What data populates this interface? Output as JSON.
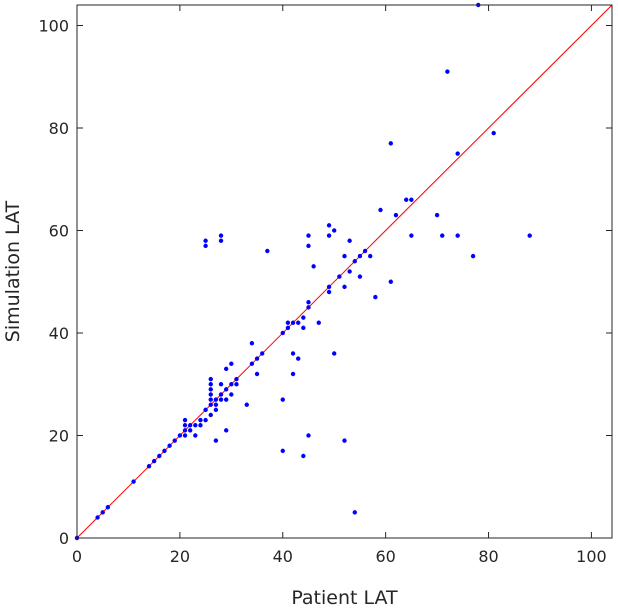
{
  "chart_data": {
    "type": "scatter",
    "title": "",
    "xlabel": "Patient LAT",
    "ylabel": "Simulation LAT",
    "xlim": [
      0,
      104
    ],
    "ylim": [
      0,
      104
    ],
    "xticks": [
      0,
      20,
      40,
      60,
      80,
      100
    ],
    "yticks": [
      0,
      20,
      40,
      60,
      80,
      100
    ],
    "grid": false,
    "legend": "none",
    "colors": {
      "points": "#0000ff",
      "reference_line": "#ff0000",
      "axes": "#262626"
    },
    "reference_line": {
      "kind": "identity",
      "from": [
        0,
        0
      ],
      "to": [
        104,
        104
      ]
    },
    "series": [
      {
        "points": [
          [
            0,
            0
          ],
          [
            4,
            4
          ],
          [
            5,
            5
          ],
          [
            6,
            6
          ],
          [
            11,
            11
          ],
          [
            14,
            14
          ],
          [
            15,
            15
          ],
          [
            16,
            16
          ],
          [
            17,
            17
          ],
          [
            18,
            18
          ],
          [
            19,
            19
          ],
          [
            20,
            20
          ],
          [
            21,
            20
          ],
          [
            21,
            21
          ],
          [
            21,
            22
          ],
          [
            21,
            23
          ],
          [
            22,
            21
          ],
          [
            22,
            22
          ],
          [
            23,
            20
          ],
          [
            23,
            22
          ],
          [
            24,
            22
          ],
          [
            24,
            23
          ],
          [
            25,
            23
          ],
          [
            25,
            25
          ],
          [
            25,
            57
          ],
          [
            25,
            58
          ],
          [
            26,
            24
          ],
          [
            26,
            26
          ],
          [
            26,
            27
          ],
          [
            26,
            28
          ],
          [
            26,
            29
          ],
          [
            26,
            30
          ],
          [
            26,
            31
          ],
          [
            27,
            19
          ],
          [
            27,
            25
          ],
          [
            27,
            26
          ],
          [
            27,
            27
          ],
          [
            28,
            27
          ],
          [
            28,
            28
          ],
          [
            28,
            30
          ],
          [
            28,
            58
          ],
          [
            28,
            59
          ],
          [
            29,
            21
          ],
          [
            29,
            27
          ],
          [
            29,
            29
          ],
          [
            29,
            33
          ],
          [
            30,
            28
          ],
          [
            30,
            30
          ],
          [
            30,
            34
          ],
          [
            31,
            30
          ],
          [
            31,
            31
          ],
          [
            33,
            26
          ],
          [
            34,
            34
          ],
          [
            34,
            38
          ],
          [
            35,
            32
          ],
          [
            35,
            35
          ],
          [
            36,
            36
          ],
          [
            37,
            56
          ],
          [
            40,
            17
          ],
          [
            40,
            27
          ],
          [
            40,
            40
          ],
          [
            41,
            41
          ],
          [
            41,
            42
          ],
          [
            42,
            32
          ],
          [
            42,
            36
          ],
          [
            42,
            42
          ],
          [
            43,
            35
          ],
          [
            43,
            42
          ],
          [
            44,
            16
          ],
          [
            44,
            41
          ],
          [
            44,
            43
          ],
          [
            45,
            20
          ],
          [
            45,
            45
          ],
          [
            45,
            46
          ],
          [
            45,
            57
          ],
          [
            45,
            59
          ],
          [
            46,
            53
          ],
          [
            47,
            42
          ],
          [
            49,
            48
          ],
          [
            49,
            49
          ],
          [
            49,
            59
          ],
          [
            49,
            61
          ],
          [
            50,
            36
          ],
          [
            50,
            60
          ],
          [
            51,
            51
          ],
          [
            52,
            19
          ],
          [
            52,
            49
          ],
          [
            52,
            55
          ],
          [
            53,
            52
          ],
          [
            53,
            58
          ],
          [
            54,
            5
          ],
          [
            54,
            54
          ],
          [
            55,
            51
          ],
          [
            55,
            55
          ],
          [
            56,
            56
          ],
          [
            57,
            55
          ],
          [
            58,
            47
          ],
          [
            59,
            64
          ],
          [
            61,
            50
          ],
          [
            61,
            77
          ],
          [
            62,
            63
          ],
          [
            64,
            66
          ],
          [
            65,
            59
          ],
          [
            65,
            66
          ],
          [
            70,
            63
          ],
          [
            71,
            59
          ],
          [
            72,
            91
          ],
          [
            74,
            59
          ],
          [
            74,
            75
          ],
          [
            77,
            55
          ],
          [
            78,
            104
          ],
          [
            81,
            79
          ],
          [
            88,
            59
          ]
        ]
      }
    ]
  }
}
